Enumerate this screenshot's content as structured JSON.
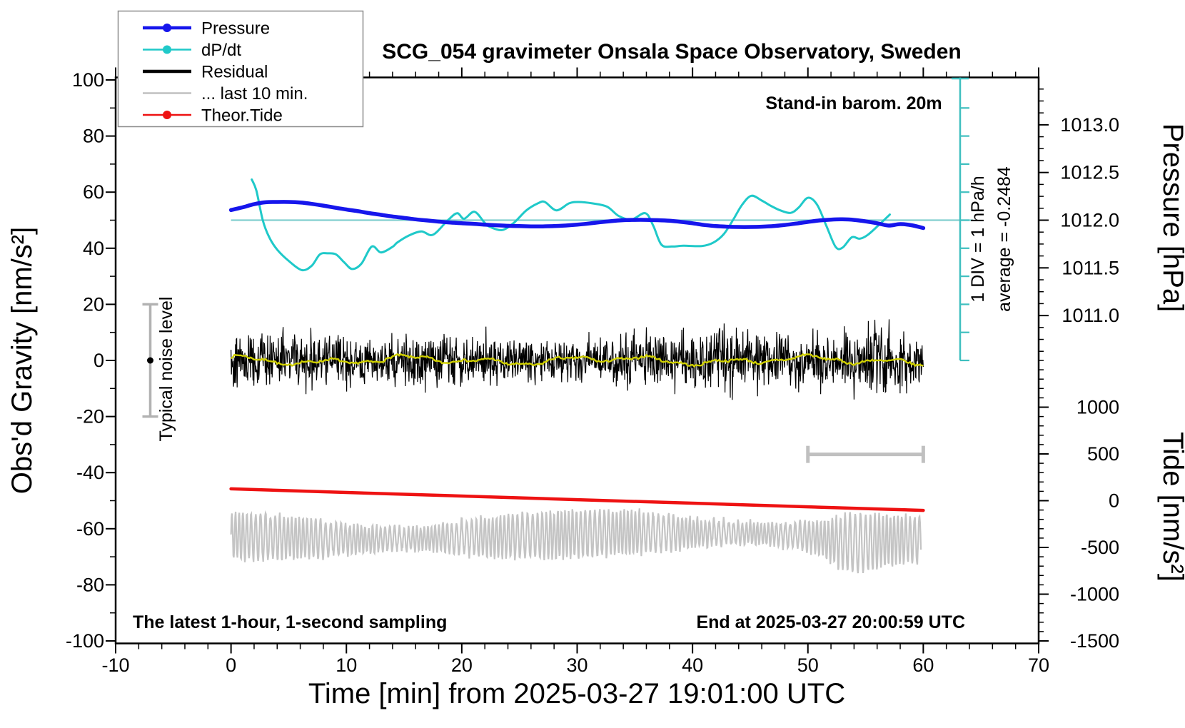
{
  "title": "SCG_054 gravimeter Onsala Space Observatory, Sweden",
  "annotations": {
    "stand_in": "Stand-in barom. 20m",
    "div_scale": "1 DIV = 1 hPa/h",
    "average": "average = -0.2484",
    "noise_level": "Typical noise level",
    "sampling_note": "The latest 1-hour, 1-second sampling",
    "end_note": "End at 2025-03-27 20:00:59 UTC"
  },
  "colors": {
    "pressure": "#1616ec",
    "dpdt": "#1fc9c9",
    "dpdt_ref_line": "#82cfcf",
    "div_bar": "#3fbfbf",
    "residual": "#000000",
    "residual_smooth": "#d0d000",
    "last10": "#c4c4c4",
    "tide": "#ee1212",
    "noise_bar": "#b2b2b2",
    "extent_bar": "#c0c0c0"
  },
  "legend": [
    {
      "label": "Pressure",
      "color": "#1616ec",
      "width": 4.5,
      "marker": true
    },
    {
      "label": "dP/dt",
      "color": "#1fc9c9",
      "width": 2.5,
      "marker": true
    },
    {
      "label": "Residual",
      "color": "#000000",
      "width": 4.5,
      "marker": false
    },
    {
      "label": "... last 10 min.",
      "color": "#c0c0c0",
      "width": 2.5,
      "marker": false
    },
    {
      "label": "Theor.Tide",
      "color": "#ee1212",
      "width": 2.5,
      "marker": true
    }
  ],
  "axes": {
    "x": {
      "label": "Time [min] from 2025-03-27 19:01:00 UTC",
      "range": [
        -10,
        70
      ],
      "major_ticks": [
        -10,
        0,
        10,
        20,
        30,
        40,
        50,
        60,
        70
      ],
      "minor_step": 2
    },
    "y_left": {
      "label": "Obs'd Gravity [nm/s²]",
      "range": [
        -100,
        100
      ],
      "major_ticks": [
        -100,
        -80,
        -60,
        -40,
        -20,
        0,
        20,
        40,
        60,
        80,
        100
      ],
      "minor_step": 10
    },
    "y_pressure": {
      "label": "Pressure [hPa]",
      "major_ticks": [
        1013.0,
        1012.5,
        1012.0,
        1011.5,
        1011.0
      ],
      "minor_step": 0.125,
      "minor_range": [
        1010.625,
        1013.375
      ]
    },
    "y_tide": {
      "label": "Tide [nm/s²]",
      "major_ticks": [
        1000,
        500,
        0,
        -500,
        -1000,
        -1500
      ],
      "minor_step": 100,
      "minor_range": [
        -1500,
        1500
      ]
    }
  },
  "chart_data": {
    "type": "line",
    "title": "SCG_054 gravimeter Onsala Space Observatory, Sweden",
    "xlabel": "Time [min] from 2025-03-27 19:01:00 UTC",
    "x_range": [
      -10,
      70
    ],
    "axes_mapping": {
      "gravity_left_range": [
        -100,
        100
      ],
      "pressure_ref": "1012.0 hPa plotted at gravity 50 nm/s², 1 hPa = 34 gravity units",
      "tide_ref": "tide 0 plotted at gravity -50 nm/s², 500 tide units = 16.67 gravity units",
      "dpdt_ref": "0 hPa/h plotted at gravity 50 nm/s², 1 hPa/h = 10 gravity units (1 DIV)"
    },
    "series": [
      {
        "name": "Pressure",
        "unit": "hPa",
        "axis": "pressure",
        "x_step_min": 1,
        "x_start": 0,
        "y": [
          1012.106,
          1012.135,
          1012.168,
          1012.188,
          1012.191,
          1012.191,
          1012.185,
          1012.171,
          1012.153,
          1012.132,
          1012.112,
          1012.094,
          1012.074,
          1012.056,
          1012.038,
          1012.024,
          1012.009,
          1011.997,
          1011.985,
          1011.976,
          1011.968,
          1011.962,
          1011.953,
          1011.947,
          1011.941,
          1011.938,
          1011.935,
          1011.935,
          1011.938,
          1011.944,
          1011.953,
          1011.965,
          1011.979,
          1011.991,
          1012.0,
          1012.003,
          1012.003,
          1012.0,
          1011.994,
          1011.982,
          1011.968,
          1011.95,
          1011.938,
          1011.932,
          1011.929,
          1011.929,
          1011.932,
          1011.938,
          1011.95,
          1011.965,
          1011.982,
          1011.997,
          1012.006,
          1012.009,
          1012.003,
          1011.988,
          1011.968,
          1011.944,
          1011.959,
          1011.947,
          1011.918
        ]
      },
      {
        "name": "dP/dt",
        "unit": "hPa/h",
        "axis": "dpdt",
        "average": -0.2484,
        "x": [
          1.8,
          2.2,
          2.75,
          3.3,
          4,
          5,
          6.15,
          7,
          7.7,
          8.4,
          9.1,
          9.8,
          10.5,
          11.3,
          12.2,
          13,
          14,
          14.4,
          15.4,
          16.5,
          17.5,
          18.8,
          19.6,
          20.2,
          21.1,
          22,
          22.5,
          23.5,
          24.5,
          25.6,
          26.6,
          27.2,
          28.2,
          29.3,
          30.1,
          31.3,
          32.6,
          33.6,
          34.7,
          35.9,
          36.6,
          37.3,
          38.2,
          39.2,
          40.8,
          41.8,
          42.7,
          43.5,
          44.3,
          45.1,
          46,
          46.8,
          47.6,
          48.5,
          49.2,
          50,
          50.8,
          51.6,
          52.4,
          53,
          53.8,
          54.5,
          55.2,
          56.2,
          57.1
        ],
        "y": [
          1.45,
          1.05,
          0,
          -0.6,
          -1.05,
          -1.45,
          -1.78,
          -1.62,
          -1.22,
          -1.18,
          -1.22,
          -1.5,
          -1.74,
          -1.55,
          -0.94,
          -1.15,
          -0.95,
          -0.8,
          -0.55,
          -0.4,
          -0.52,
          0,
          0.25,
          0.05,
          0.3,
          -0.1,
          -0.25,
          -0.35,
          -0.1,
          0.35,
          0.6,
          0.65,
          0.35,
          0.6,
          0.65,
          0.6,
          0.48,
          0.15,
          0.02,
          0.25,
          -0.2,
          -0.87,
          -0.94,
          -0.91,
          -0.92,
          -0.8,
          -0.5,
          0,
          0.55,
          0.87,
          0.7,
          0.51,
          0.35,
          0.26,
          0.45,
          0.8,
          0.55,
          -0.2,
          -0.95,
          -0.98,
          -0.61,
          -0.66,
          -0.52,
          -0.15,
          0.2
        ]
      },
      {
        "name": "Residual",
        "unit": "nm/s²",
        "axis": "gravity",
        "x_range": [
          0,
          60
        ],
        "stat": {
          "mean": 0,
          "std": 5,
          "peaks": 20
        },
        "note": "1-second noise trace, regenerated deterministically"
      },
      {
        "name": "Residual smoothed",
        "unit": "nm/s²",
        "axis": "gravity",
        "x_range": [
          0,
          60
        ],
        "stat": {
          "mean": 0,
          "amplitude": 2
        },
        "note": "yellow running-mean trace"
      },
      {
        "name": "... last 10 min.",
        "unit": "nm/s²",
        "axis": "gravity",
        "x_range": [
          0,
          59.8
        ],
        "display_center": -62.5,
        "display_amplitude": 8,
        "extent_bar": {
          "x_start_min": 50,
          "x_end_min": 60,
          "at_gravity": -33.5
        },
        "note": "last-10-minute residual stretched over the hour"
      },
      {
        "name": "Theor.Tide",
        "unit": "nm/s²",
        "axis": "tide",
        "x": [
          0,
          10,
          20,
          30,
          40,
          50,
          60
        ],
        "y": [
          127,
          88,
          50,
          11,
          -27,
          -66,
          -104
        ]
      }
    ],
    "noise_errorbar": {
      "x_min": -7,
      "gravity_range": [
        -20,
        20
      ]
    },
    "legend_position": "top-left",
    "grid": false
  }
}
